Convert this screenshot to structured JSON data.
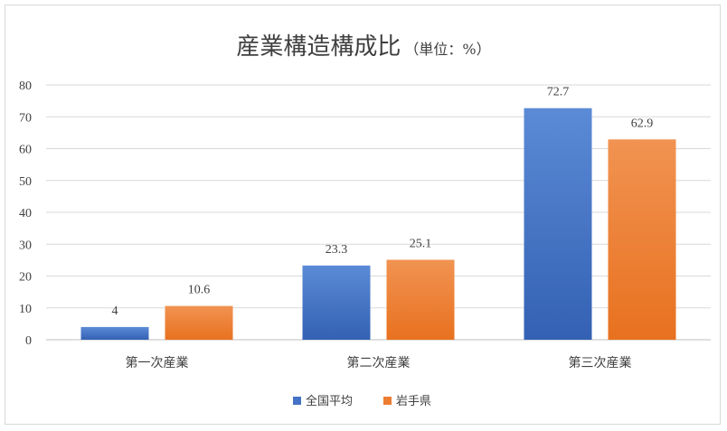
{
  "chart_data": {
    "type": "bar",
    "title": "産業構造構成比",
    "subtitle": "（単位：%）",
    "categories": [
      "第一次産業",
      "第二次産業",
      "第三次産業"
    ],
    "series": [
      {
        "name": "全国平均",
        "values": [
          4,
          23.3,
          72.7
        ],
        "color": "#4472c4"
      },
      {
        "name": "岩手県",
        "values": [
          10.6,
          25.1,
          62.9
        ],
        "color": "#ed7d31"
      }
    ],
    "ylim": [
      0,
      80
    ],
    "yticks": [
      0,
      10,
      20,
      30,
      40,
      50,
      60,
      70,
      80
    ],
    "xlabel": "",
    "ylabel": "",
    "grid": true,
    "legend_position": "bottom",
    "data_labels": true
  }
}
